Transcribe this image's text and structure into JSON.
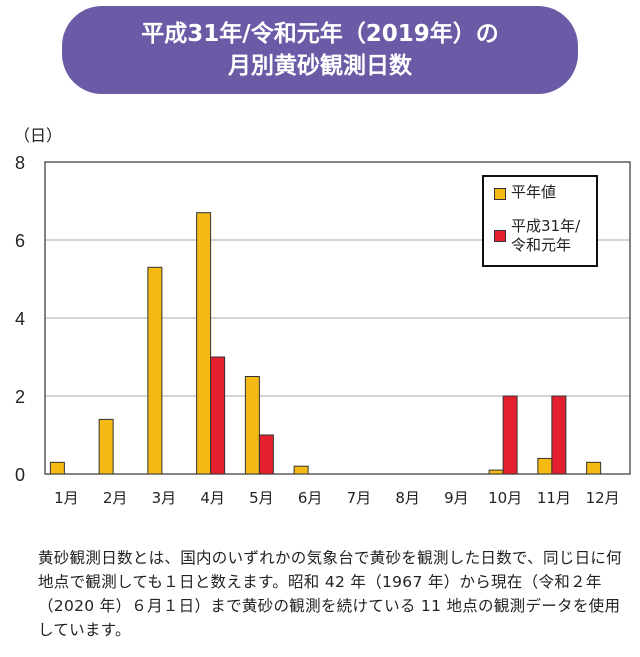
{
  "header": {
    "line1": "平成31年/令和元年（2019年）の",
    "line2": "月別黄砂観測日数"
  },
  "chart_data": {
    "type": "bar",
    "title": "平成31年/令和元年（2019年）の月別黄砂観測日数",
    "ylabel": "（日）",
    "ylim": [
      0,
      8
    ],
    "yticks": [
      "0",
      "2",
      "4",
      "6",
      "8"
    ],
    "grid": true,
    "legend_position": "top-right",
    "categories": [
      "1月",
      "2月",
      "3月",
      "4月",
      "5月",
      "6月",
      "7月",
      "8月",
      "9月",
      "10月",
      "11月",
      "12月"
    ],
    "series": [
      {
        "name": "平年値",
        "color": "#f5b914",
        "values": [
          0.3,
          1.4,
          5.3,
          6.7,
          2.5,
          0.2,
          0,
          0,
          0,
          0.1,
          0.4,
          0.3
        ]
      },
      {
        "name": "平成31年/令和元年",
        "color": "#e4202e",
        "values": [
          0,
          0,
          0,
          3,
          1,
          0,
          0,
          0,
          0,
          2,
          2,
          0
        ]
      }
    ]
  },
  "note": "黄砂観測日数とは、国内のいずれかの気象台で黄砂を観測した日数で、同じ日に何地点で観測しても１日と数えます。昭和 42 年（1967 年）から現在（令和２年（2020 年）６月１日）まで黄砂の観測を続けている 11 地点の観測データを使用しています。"
}
